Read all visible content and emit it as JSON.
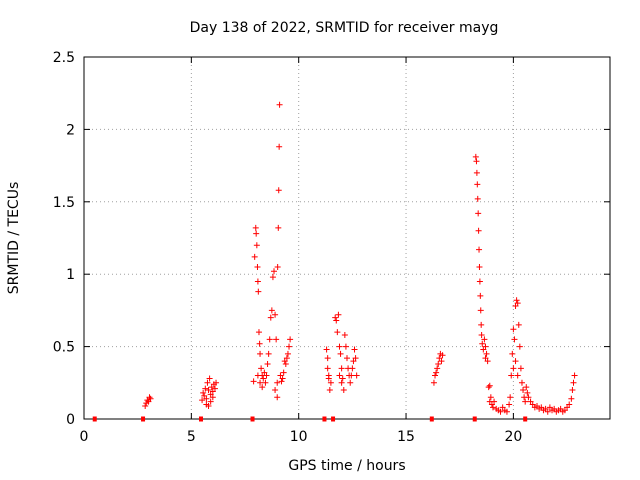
{
  "chart_data": {
    "type": "scatter",
    "title": "Day 138 of 2022, SRMTID for receiver mayg",
    "xlabel": "GPS time / hours",
    "ylabel": "SRMTID / TECUs",
    "xlim": [
      0,
      24.5
    ],
    "ylim": [
      0,
      2.5
    ],
    "xticks": [
      0,
      5,
      10,
      15,
      20
    ],
    "yticks": [
      0,
      0.5,
      1,
      1.5,
      2,
      2.5
    ],
    "grid": true,
    "marker": "+",
    "color": "#ff0000",
    "series": [
      {
        "name": "SRMTID",
        "points": [
          [
            2.85,
            0.09
          ],
          [
            2.9,
            0.11
          ],
          [
            2.95,
            0.13
          ],
          [
            3.0,
            0.12
          ],
          [
            3.05,
            0.15
          ],
          [
            3.1,
            0.14
          ],
          [
            5.5,
            0.13
          ],
          [
            5.55,
            0.18
          ],
          [
            5.6,
            0.16
          ],
          [
            5.65,
            0.21
          ],
          [
            5.7,
            0.14
          ],
          [
            5.75,
            0.25
          ],
          [
            5.8,
            0.2
          ],
          [
            5.85,
            0.28
          ],
          [
            5.9,
            0.17
          ],
          [
            5.95,
            0.22
          ],
          [
            6.0,
            0.19
          ],
          [
            6.05,
            0.24
          ],
          [
            6.1,
            0.21
          ],
          [
            6.15,
            0.25
          ],
          [
            5.7,
            0.1
          ],
          [
            5.8,
            0.09
          ],
          [
            5.9,
            0.12
          ],
          [
            6.0,
            0.15
          ],
          [
            7.9,
            0.26
          ],
          [
            7.95,
            1.12
          ],
          [
            8.0,
            1.32
          ],
          [
            8.02,
            1.28
          ],
          [
            8.05,
            1.2
          ],
          [
            8.08,
            1.05
          ],
          [
            8.1,
            0.95
          ],
          [
            8.12,
            0.88
          ],
          [
            8.15,
            0.6
          ],
          [
            8.18,
            0.52
          ],
          [
            8.2,
            0.45
          ],
          [
            8.25,
            0.35
          ],
          [
            8.3,
            0.3
          ],
          [
            8.35,
            0.28
          ],
          [
            8.4,
            0.32
          ],
          [
            8.45,
            0.25
          ],
          [
            8.5,
            0.3
          ],
          [
            8.55,
            0.38
          ],
          [
            8.6,
            0.45
          ],
          [
            8.65,
            0.55
          ],
          [
            8.7,
            0.7
          ],
          [
            8.75,
            0.75
          ],
          [
            8.8,
            0.98
          ],
          [
            8.85,
            1.02
          ],
          [
            8.9,
            0.72
          ],
          [
            8.95,
            0.55
          ],
          [
            9.0,
            0.15
          ],
          [
            9.02,
            1.05
          ],
          [
            9.05,
            1.32
          ],
          [
            9.07,
            1.58
          ],
          [
            9.09,
            1.88
          ],
          [
            9.11,
            2.17
          ],
          [
            9.15,
            0.3
          ],
          [
            9.2,
            0.26
          ],
          [
            9.25,
            0.28
          ],
          [
            9.3,
            0.32
          ],
          [
            9.35,
            0.4
          ],
          [
            9.4,
            0.38
          ],
          [
            9.45,
            0.42
          ],
          [
            9.5,
            0.45
          ],
          [
            9.55,
            0.5
          ],
          [
            9.6,
            0.55
          ],
          [
            8.1,
            0.3
          ],
          [
            8.2,
            0.25
          ],
          [
            8.3,
            0.22
          ],
          [
            8.9,
            0.2
          ],
          [
            9.0,
            0.25
          ],
          [
            11.3,
            0.48
          ],
          [
            11.35,
            0.35
          ],
          [
            11.4,
            0.28
          ],
          [
            11.45,
            0.2
          ],
          [
            11.5,
            0.25
          ],
          [
            11.35,
            0.42
          ],
          [
            11.4,
            0.3
          ],
          [
            11.7,
            0.7
          ],
          [
            11.75,
            0.68
          ],
          [
            11.8,
            0.6
          ],
          [
            11.85,
            0.72
          ],
          [
            11.9,
            0.5
          ],
          [
            11.95,
            0.45
          ],
          [
            12.0,
            0.35
          ],
          [
            12.05,
            0.28
          ],
          [
            12.1,
            0.2
          ],
          [
            12.15,
            0.58
          ],
          [
            12.2,
            0.5
          ],
          [
            12.25,
            0.42
          ],
          [
            12.3,
            0.35
          ],
          [
            12.35,
            0.3
          ],
          [
            12.4,
            0.25
          ],
          [
            12.45,
            0.3
          ],
          [
            12.5,
            0.35
          ],
          [
            12.55,
            0.4
          ],
          [
            12.6,
            0.48
          ],
          [
            12.65,
            0.42
          ],
          [
            12.7,
            0.3
          ],
          [
            11.9,
            0.3
          ],
          [
            12.0,
            0.25
          ],
          [
            16.3,
            0.25
          ],
          [
            16.35,
            0.3
          ],
          [
            16.4,
            0.32
          ],
          [
            16.45,
            0.35
          ],
          [
            16.5,
            0.38
          ],
          [
            16.55,
            0.42
          ],
          [
            16.6,
            0.45
          ],
          [
            16.65,
            0.4
          ],
          [
            16.7,
            0.44
          ],
          [
            18.25,
            1.81
          ],
          [
            18.28,
            1.78
          ],
          [
            18.3,
            1.7
          ],
          [
            18.32,
            1.62
          ],
          [
            18.34,
            1.52
          ],
          [
            18.36,
            1.42
          ],
          [
            18.38,
            1.3
          ],
          [
            18.4,
            1.17
          ],
          [
            18.42,
            1.05
          ],
          [
            18.44,
            0.95
          ],
          [
            18.46,
            0.85
          ],
          [
            18.48,
            0.75
          ],
          [
            18.5,
            0.65
          ],
          [
            18.52,
            0.58
          ],
          [
            18.55,
            0.52
          ],
          [
            18.6,
            0.48
          ],
          [
            18.65,
            0.55
          ],
          [
            18.7,
            0.5
          ],
          [
            18.75,
            0.45
          ],
          [
            18.8,
            0.4
          ],
          [
            18.85,
            0.22
          ],
          [
            18.9,
            0.23
          ],
          [
            18.95,
            0.15
          ],
          [
            19.0,
            0.1
          ],
          [
            19.05,
            0.08
          ],
          [
            19.1,
            0.12
          ],
          [
            19.2,
            0.07
          ],
          [
            19.3,
            0.06
          ],
          [
            19.4,
            0.05
          ],
          [
            19.5,
            0.08
          ],
          [
            19.6,
            0.06
          ],
          [
            19.7,
            0.05
          ],
          [
            19.8,
            0.1
          ],
          [
            19.85,
            0.15
          ],
          [
            19.9,
            0.3
          ],
          [
            19.95,
            0.45
          ],
          [
            20.0,
            0.62
          ],
          [
            20.05,
            0.55
          ],
          [
            20.1,
            0.78
          ],
          [
            20.15,
            0.82
          ],
          [
            20.2,
            0.8
          ],
          [
            20.25,
            0.65
          ],
          [
            20.3,
            0.5
          ],
          [
            20.35,
            0.35
          ],
          [
            20.4,
            0.25
          ],
          [
            20.45,
            0.2
          ],
          [
            20.5,
            0.15
          ],
          [
            20.55,
            0.12
          ],
          [
            20.6,
            0.22
          ],
          [
            20.65,
            0.18
          ],
          [
            20.7,
            0.15
          ],
          [
            20.8,
            0.12
          ],
          [
            20.9,
            0.1
          ],
          [
            21.0,
            0.08
          ],
          [
            21.1,
            0.09
          ],
          [
            21.2,
            0.07
          ],
          [
            21.3,
            0.08
          ],
          [
            21.4,
            0.06
          ],
          [
            21.5,
            0.07
          ],
          [
            21.6,
            0.05
          ],
          [
            21.7,
            0.08
          ],
          [
            21.8,
            0.06
          ],
          [
            21.9,
            0.07
          ],
          [
            22.0,
            0.05
          ],
          [
            22.1,
            0.06
          ],
          [
            22.2,
            0.07
          ],
          [
            22.3,
            0.05
          ],
          [
            22.4,
            0.06
          ],
          [
            22.5,
            0.08
          ],
          [
            22.6,
            0.1
          ],
          [
            22.7,
            0.14
          ],
          [
            22.75,
            0.2
          ],
          [
            22.8,
            0.25
          ],
          [
            22.85,
            0.3
          ],
          [
            18.7,
            0.42
          ],
          [
            18.9,
            0.12
          ],
          [
            20.0,
            0.35
          ],
          [
            20.1,
            0.4
          ],
          [
            20.2,
            0.3
          ]
        ]
      }
    ],
    "gap_markers_x": [
      0.5,
      2.75,
      5.45,
      7.85,
      11.2,
      11.6,
      16.2,
      18.2,
      20.55
    ]
  }
}
